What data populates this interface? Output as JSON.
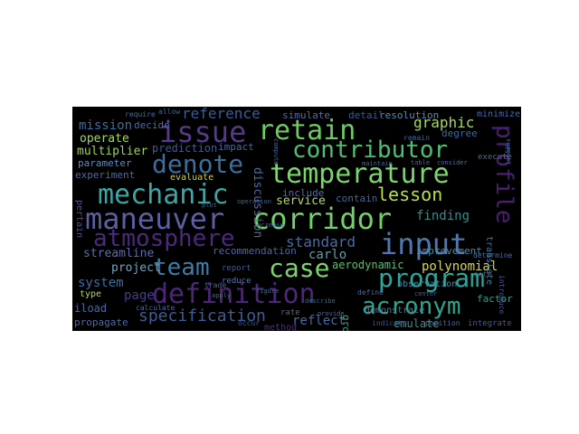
{
  "colors": {
    "page_background": "#ffffff",
    "cloud_background": "#000000"
  },
  "words": [
    {
      "text": "maneuver",
      "color": "#5d5fa0"
    },
    {
      "text": "corridor",
      "color": "#72cf6a"
    },
    {
      "text": "mechanic",
      "color": "#3ea5a5"
    },
    {
      "text": "temperature",
      "color": "#7bd66b"
    },
    {
      "text": "retain",
      "color": "#6cca62"
    },
    {
      "text": "issue",
      "color": "#553a86"
    },
    {
      "text": "contributor",
      "color": "#4fbe75"
    },
    {
      "text": "denote",
      "color": "#3a6f9c"
    },
    {
      "text": "atmosphere",
      "color": "#4b2a7a"
    },
    {
      "text": "input",
      "color": "#4f78b0"
    },
    {
      "text": "profile",
      "color": "#4a1f70"
    },
    {
      "text": "case",
      "color": "#7fd270"
    },
    {
      "text": "team",
      "color": "#3a7ea8"
    },
    {
      "text": "definition",
      "color": "#4b2876"
    },
    {
      "text": "program",
      "color": "#2fa59a"
    },
    {
      "text": "acronym",
      "color": "#2fa58e"
    },
    {
      "text": "lesson",
      "color": "#b8de4a"
    },
    {
      "text": "specification",
      "color": "#3d5c96"
    },
    {
      "text": "reference",
      "color": "#3a5d94"
    },
    {
      "text": "graphic",
      "color": "#a6d95a"
    },
    {
      "text": "standard",
      "color": "#4c6aa0"
    },
    {
      "text": "finding",
      "color": "#2e8f8f"
    },
    {
      "text": "polynomial",
      "color": "#d9d54a"
    },
    {
      "text": "service",
      "color": "#b3dd58"
    },
    {
      "text": "carlo",
      "color": "#5ea0a8"
    },
    {
      "text": "aerodynamic",
      "color": "#5fbf6a"
    },
    {
      "text": "mission",
      "color": "#3a6da0"
    },
    {
      "text": "operate",
      "color": "#a7d85c"
    },
    {
      "text": "multiplier",
      "color": "#9bd25a"
    },
    {
      "text": "prediction",
      "color": "#3b5d9b"
    },
    {
      "text": "parameter",
      "color": "#5a8dc0"
    },
    {
      "text": "experiment",
      "color": "#4d6aa0"
    },
    {
      "text": "project",
      "color": "#6fa5c0"
    },
    {
      "text": "streamline",
      "color": "#5d6bb0"
    },
    {
      "text": "system",
      "color": "#3a6da3"
    },
    {
      "text": "page",
      "color": "#4b3a8a"
    },
    {
      "text": "propagate",
      "color": "#4e6aa3"
    },
    {
      "text": "reflect",
      "color": "#4a6aa0"
    },
    {
      "text": "emulate",
      "color": "#3a8f95"
    },
    {
      "text": "discussion",
      "color": "#4e6aa6"
    },
    {
      "text": "recommendation",
      "color": "#4a6aa0"
    },
    {
      "text": "simulate",
      "color": "#5a6aa0"
    },
    {
      "text": "resolution",
      "color": "#5a8ab0"
    },
    {
      "text": "detail",
      "color": "#3a5a90"
    },
    {
      "text": "degree",
      "color": "#3a6aa0"
    },
    {
      "text": "improvement",
      "color": "#4a8aa6"
    },
    {
      "text": "decide",
      "color": "#4a6ba6"
    },
    {
      "text": "evaluate",
      "color": "#d0d040"
    },
    {
      "text": "impact",
      "color": "#4a6a9c"
    },
    {
      "text": "include",
      "color": "#5a6aa0"
    },
    {
      "text": "contain",
      "color": "#3a6a9c"
    },
    {
      "text": "translate",
      "color": "#3a7aa0"
    },
    {
      "text": "observation",
      "color": "#4a8aa0"
    },
    {
      "text": "factor",
      "color": "#3a9a8a"
    },
    {
      "text": "demonstrate",
      "color": "#4a7aa0"
    },
    {
      "text": "grow",
      "color": "#3aa08a"
    },
    {
      "text": "report",
      "color": "#4a5a90"
    },
    {
      "text": "reduce",
      "color": "#5a7aa6"
    },
    {
      "text": "trade",
      "color": "#4a6a9c"
    },
    {
      "text": "type",
      "color": "#b0d85a"
    },
    {
      "text": "iload",
      "color": "#4a6aa0"
    },
    {
      "text": "pertain",
      "color": "#4a5a95"
    },
    {
      "text": "execute",
      "color": "#4a6a9c"
    },
    {
      "text": "minimize",
      "color": "#4a6aa0"
    },
    {
      "text": "determine",
      "color": "#4a6a9c"
    },
    {
      "text": "note",
      "color": "#3a6a95"
    },
    {
      "text": "define",
      "color": "#4a6aa0"
    },
    {
      "text": "rate",
      "color": "#4a6a9c"
    },
    {
      "text": "indicate",
      "color": "#3a5a90"
    },
    {
      "text": "occur",
      "color": "#3a5a90"
    },
    {
      "text": "position",
      "color": "#4a6aa0"
    },
    {
      "text": "remain",
      "color": "#3a6a95"
    },
    {
      "text": "require",
      "color": "#4a6aa0"
    },
    {
      "text": "allow",
      "color": "#3a6a95"
    },
    {
      "text": "calculate",
      "color": "#4a6aa0"
    },
    {
      "text": "integrate",
      "color": "#4a5a95"
    },
    {
      "text": "table",
      "color": "#3a6a95"
    },
    {
      "text": "consider",
      "color": "#4a6aa0"
    },
    {
      "text": "method",
      "color": "#4a2f7a"
    },
    {
      "text": "introduce",
      "color": "#4a5a95"
    },
    {
      "text": "center",
      "color": "#3a6a95"
    },
    {
      "text": "provide",
      "color": "#4a6a9c"
    },
    {
      "text": "figure",
      "color": "#3a6a95"
    },
    {
      "text": "operation",
      "color": "#3a6a95"
    },
    {
      "text": "maintain",
      "color": "#3a6a95"
    },
    {
      "text": "compute",
      "color": "#3a6a95"
    },
    {
      "text": "describe",
      "color": "#3a6a95"
    },
    {
      "text": "increase",
      "color": "#3a6a95"
    },
    {
      "text": "apply",
      "color": "#3a6a95"
    },
    {
      "text": "plot",
      "color": "#3a6a95"
    },
    {
      "text": "suggest",
      "color": "#3a6a95"
    }
  ]
}
